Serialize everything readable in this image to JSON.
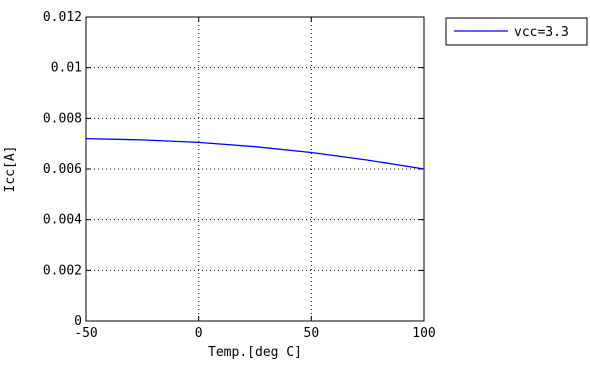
{
  "chart_data": {
    "type": "line",
    "title": "",
    "xlabel": "Temp.[deg C]",
    "ylabel": "Icc[A]",
    "xlim": [
      -50,
      100
    ],
    "ylim": [
      0,
      0.012
    ],
    "grid": true,
    "legend_placement": "outside-top-right",
    "x_ticks": [
      -50,
      0,
      50,
      100
    ],
    "x_tick_labels": [
      "-50",
      "0",
      "50",
      "100"
    ],
    "y_ticks": [
      0,
      0.002,
      0.004,
      0.006,
      0.008,
      0.01,
      0.012
    ],
    "y_tick_labels": [
      "0",
      "0.002",
      "0.004",
      "0.006",
      "0.008",
      "0.01",
      "0.012"
    ],
    "series": [
      {
        "name": "vcc=3.3",
        "color": "#0000ff",
        "x": [
          -50,
          -25,
          0,
          25,
          50,
          75,
          100
        ],
        "y": [
          0.0072,
          0.00715,
          0.00705,
          0.00688,
          0.00665,
          0.00635,
          0.006
        ]
      }
    ]
  }
}
